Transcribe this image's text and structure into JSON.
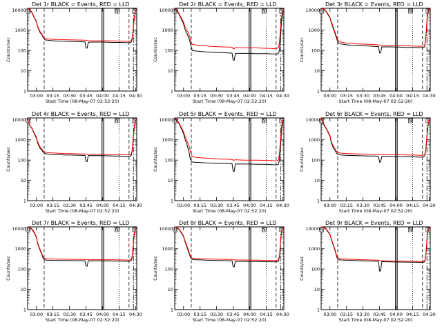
{
  "chart_data": {
    "type": "line",
    "shared": {
      "ylabel": "Counts/sec",
      "xlabel": "Start Time (08-May-07 02:52:20)",
      "xticks": [
        "03:00",
        "03:15",
        "03:30",
        "03:45",
        "04:00",
        "04:15",
        "04:30"
      ],
      "xtick_minutes": [
        0,
        15,
        30,
        45,
        60,
        75,
        90
      ],
      "yticks": [
        "1",
        "10",
        "100",
        "1000",
        "10000"
      ],
      "yscale": "log",
      "ylim": [
        1,
        12000
      ],
      "xlim_minutes": [
        -8,
        91
      ],
      "series_names": [
        "Events",
        "LLD"
      ],
      "series_colors": {
        "Events": "#000000",
        "LLD": "#ff0000"
      },
      "markers": {
        "dashed_minutes": [
          7,
          84
        ],
        "dotted_minutes": [
          75
        ],
        "solid_pair_minutes": [
          59.5,
          61
        ],
        "right_edge_dash_minutes": [
          88
        ],
        "top_labels": [
          "N",
          "N",
          "S"
        ],
        "top_label_minutes": [
          -7.5,
          73,
          89
        ]
      },
      "x_minutes": [
        -8,
        -6,
        -4,
        -2,
        0,
        1,
        3,
        5,
        6,
        7,
        8,
        10,
        15,
        20,
        25,
        30,
        35,
        40,
        44,
        45,
        46,
        47,
        48,
        50,
        55,
        60,
        65,
        70,
        75,
        80,
        84,
        86,
        87,
        88,
        89,
        90,
        91
      ]
    },
    "panels": [
      {
        "title": "Det 1r BLACK = Events, RED = LLD",
        "events": [
          12000,
          10000,
          7000,
          4000,
          2500,
          1500,
          800,
          600,
          450,
          380,
          330,
          320,
          300,
          290,
          285,
          280,
          275,
          270,
          265,
          130,
          130,
          250,
          255,
          260,
          260,
          260,
          255,
          250,
          250,
          245,
          240,
          260,
          400,
          1500,
          5000,
          9000,
          10000
        ],
        "lld": [
          12000,
          10500,
          7500,
          4300,
          2700,
          1600,
          900,
          650,
          500,
          420,
          380,
          370,
          350,
          345,
          340,
          335,
          330,
          325,
          320,
          310,
          310,
          300,
          300,
          300,
          300,
          300,
          300,
          295,
          290,
          285,
          280,
          300,
          450,
          1600,
          5500,
          9500,
          10500
        ]
      },
      {
        "title": "Det 2r BLACK = Events, RED = LLD",
        "events": [
          11000,
          9000,
          6000,
          3500,
          2000,
          1200,
          700,
          400,
          250,
          150,
          100,
          95,
          90,
          85,
          82,
          80,
          78,
          76,
          74,
          33,
          33,
          72,
          72,
          72,
          72,
          72,
          70,
          70,
          70,
          68,
          66,
          70,
          100,
          500,
          3000,
          8000,
          9000
        ],
        "lld": [
          11500,
          9500,
          6500,
          4000,
          2500,
          1600,
          1000,
          600,
          400,
          250,
          200,
          190,
          180,
          170,
          160,
          155,
          150,
          148,
          145,
          120,
          120,
          140,
          138,
          135,
          135,
          135,
          135,
          130,
          128,
          125,
          120,
          140,
          250,
          1200,
          5000,
          9500,
          10000
        ]
      },
      {
        "title": "Det 3r BLACK = Events, RED = LLD",
        "events": [
          12000,
          11000,
          9000,
          6000,
          4000,
          2500,
          1200,
          600,
          400,
          280,
          230,
          210,
          190,
          180,
          175,
          170,
          165,
          160,
          155,
          75,
          75,
          150,
          150,
          150,
          150,
          148,
          145,
          140,
          140,
          138,
          135,
          150,
          400,
          2500,
          8000,
          10000,
          11000
        ],
        "lld": [
          12000,
          11500,
          9500,
          6500,
          4300,
          2800,
          1400,
          700,
          480,
          340,
          290,
          260,
          230,
          220,
          210,
          205,
          200,
          195,
          190,
          180,
          175,
          175,
          175,
          175,
          175,
          175,
          170,
          168,
          165,
          162,
          160,
          180,
          500,
          3000,
          9000,
          11000,
          11500
        ]
      },
      {
        "title": "Det 4r BLACK = Events, RED = LLD",
        "events": [
          12000,
          5000,
          3500,
          2000,
          1200,
          700,
          400,
          300,
          250,
          230,
          210,
          200,
          190,
          185,
          180,
          178,
          175,
          172,
          170,
          85,
          85,
          165,
          165,
          165,
          165,
          165,
          162,
          160,
          158,
          155,
          150,
          170,
          300,
          1500,
          5000,
          9000,
          10000
        ],
        "lld": [
          12000,
          5200,
          3700,
          2200,
          1350,
          800,
          470,
          350,
          290,
          265,
          245,
          235,
          225,
          218,
          212,
          208,
          205,
          202,
          200,
          195,
          195,
          195,
          195,
          195,
          195,
          195,
          192,
          190,
          188,
          185,
          180,
          200,
          350,
          1700,
          5500,
          9500,
          10500
        ]
      },
      {
        "title": "Det 5r BLACK = Events, RED = LLD",
        "events": [
          11000,
          9000,
          6000,
          3500,
          2000,
          1200,
          600,
          250,
          120,
          90,
          80,
          78,
          75,
          73,
          72,
          70,
          69,
          68,
          66,
          28,
          28,
          65,
          65,
          64,
          64,
          64,
          63,
          62,
          62,
          60,
          58,
          62,
          100,
          500,
          3000,
          8000,
          9000
        ],
        "lld": [
          11500,
          9500,
          6500,
          4000,
          2500,
          1600,
          900,
          500,
          300,
          200,
          150,
          140,
          130,
          125,
          120,
          115,
          112,
          110,
          108,
          100,
          100,
          105,
          104,
          102,
          100,
          100,
          100,
          98,
          97,
          95,
          92,
          100,
          200,
          1000,
          5000,
          9000,
          10000
        ]
      },
      {
        "title": "Det 6r BLACK = Events, RED = LLD",
        "events": [
          12000,
          6000,
          4000,
          2500,
          1500,
          800,
          400,
          280,
          220,
          200,
          185,
          178,
          172,
          168,
          165,
          162,
          160,
          158,
          156,
          80,
          80,
          152,
          152,
          152,
          152,
          150,
          148,
          146,
          145,
          142,
          140,
          160,
          300,
          1500,
          5000,
          9000,
          10000
        ],
        "lld": [
          12000,
          6500,
          4300,
          2700,
          1650,
          900,
          480,
          340,
          270,
          245,
          228,
          220,
          212,
          206,
          202,
          198,
          195,
          192,
          190,
          185,
          185,
          185,
          185,
          185,
          185,
          185,
          182,
          180,
          178,
          175,
          170,
          190,
          350,
          1700,
          5500,
          9500,
          10500
        ]
      },
      {
        "title": "Det 7r BLACK = Events, RED = LLD",
        "events": [
          12000,
          11000,
          9000,
          6000,
          3500,
          1800,
          900,
          500,
          350,
          300,
          280,
          275,
          270,
          268,
          265,
          262,
          260,
          258,
          256,
          140,
          140,
          255,
          255,
          255,
          255,
          255,
          252,
          250,
          248,
          245,
          240,
          260,
          400,
          1800,
          6000,
          9500,
          10000
        ],
        "lld": [
          12000,
          11500,
          9500,
          6500,
          3800,
          2000,
          1000,
          560,
          400,
          345,
          325,
          318,
          312,
          308,
          305,
          302,
          300,
          298,
          296,
          290,
          290,
          290,
          290,
          290,
          290,
          290,
          288,
          285,
          282,
          280,
          275,
          300,
          450,
          2000,
          6500,
          10000,
          10500
        ]
      },
      {
        "title": "Det 8r BLACK = Events, RED = LLD",
        "events": [
          12000,
          11000,
          9000,
          6000,
          4000,
          2500,
          1200,
          600,
          420,
          330,
          300,
          290,
          282,
          276,
          270,
          265,
          262,
          258,
          255,
          130,
          130,
          240,
          240,
          240,
          240,
          238,
          235,
          232,
          230,
          228,
          225,
          240,
          400,
          2000,
          7000,
          9500,
          10000
        ],
        "lld": [
          12000,
          11500,
          9500,
          6500,
          4300,
          2800,
          1400,
          700,
          480,
          380,
          345,
          334,
          325,
          318,
          312,
          306,
          302,
          298,
          295,
          285,
          285,
          280,
          280,
          280,
          278,
          276,
          274,
          272,
          270,
          268,
          265,
          280,
          450,
          2200,
          7500,
          10000,
          10500
        ]
      },
      {
        "title": "Det 9r BLACK = Events, RED = LLD",
        "events": [
          12000,
          11500,
          10000,
          7000,
          5000,
          3200,
          1500,
          700,
          420,
          320,
          290,
          280,
          272,
          266,
          260,
          255,
          250,
          246,
          242,
          80,
          80,
          230,
          230,
          228,
          226,
          224,
          222,
          220,
          218,
          215,
          210,
          230,
          450,
          2500,
          8000,
          10000,
          11000
        ],
        "lld": [
          12000,
          11800,
          10500,
          7500,
          5300,
          3400,
          1650,
          780,
          480,
          365,
          330,
          318,
          308,
          300,
          294,
          288,
          282,
          278,
          274,
          260,
          260,
          255,
          255,
          253,
          250,
          248,
          246,
          244,
          242,
          240,
          235,
          255,
          500,
          2800,
          8500,
          10500,
          11500
        ]
      }
    ]
  }
}
